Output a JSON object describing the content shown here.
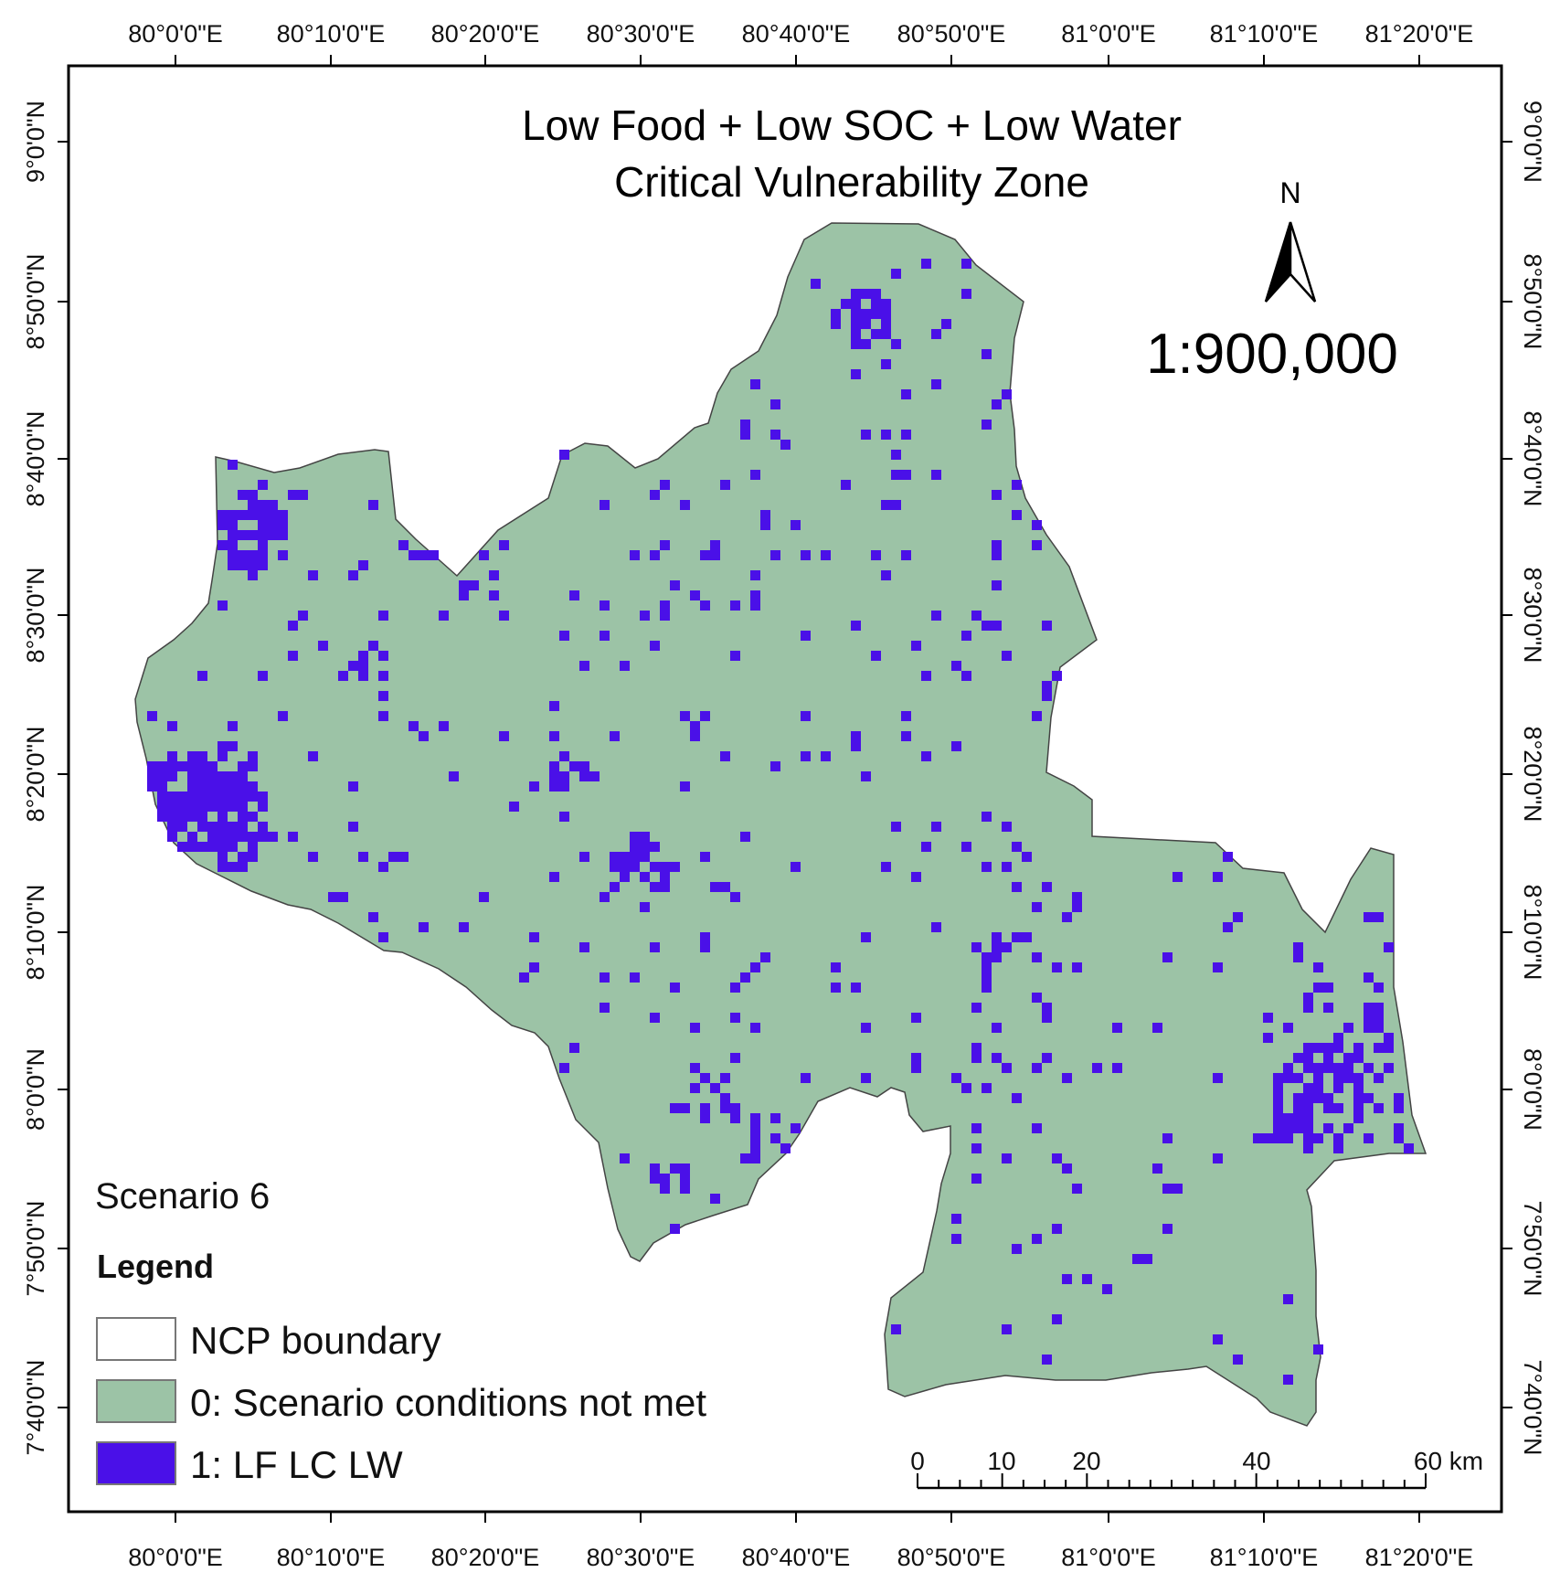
{
  "title": {
    "line1": "Low Food + Low SOC + Low Water",
    "line2": "Critical Vulnerability Zone"
  },
  "north_arrow": {
    "label": "N"
  },
  "scale_ratio": "1:900,000",
  "scenario_label": "Scenario 6",
  "legend": {
    "title": "Legend",
    "items": [
      {
        "label": "NCP boundary",
        "color": "#ffffff"
      },
      {
        "label": "0: Scenario conditions not met",
        "color": "#9cc3a6"
      },
      {
        "label": "1: LF LC LW",
        "color": "#4a10e8"
      }
    ]
  },
  "graticule": {
    "lon_labels": [
      "80°0'0\"E",
      "80°10'0\"E",
      "80°20'0\"E",
      "80°30'0\"E",
      "80°40'0\"E",
      "80°50'0\"E",
      "81°0'0\"E",
      "81°10'0\"E",
      "81°20'0\"E"
    ],
    "lat_labels": [
      "9°0'0\"N",
      "8°50'0\"N",
      "8°40'0\"N",
      "8°30'0\"N",
      "8°20'0\"N",
      "8°10'0\"N",
      "8°0'0\"N",
      "7°50'0\"N",
      "7°40'0\"N"
    ]
  },
  "scale_bar": {
    "labels": [
      "0",
      "10",
      "20",
      "40",
      "60 km"
    ]
  },
  "colors": {
    "frame": "#000000",
    "region_fill": "#9cc3a6",
    "vulnerable": "#4a10e8"
  }
}
